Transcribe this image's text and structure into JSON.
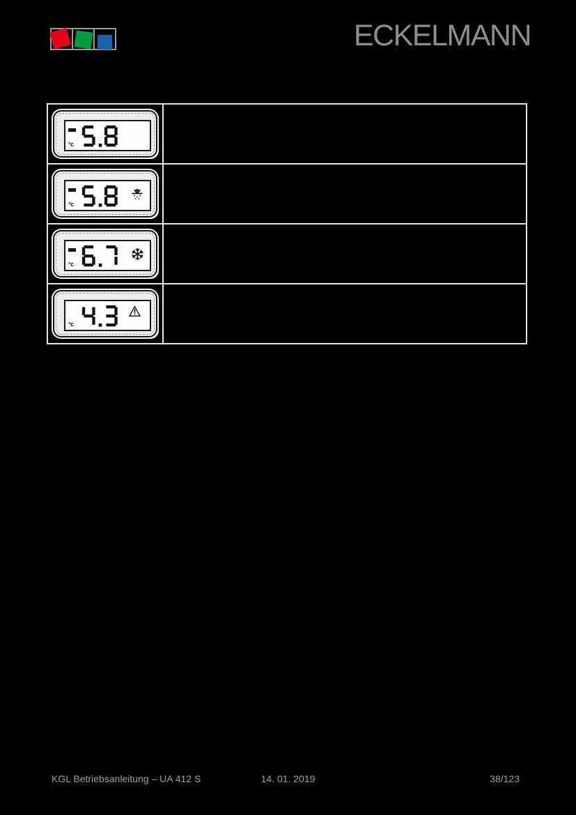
{
  "page": {
    "background": "#000000",
    "footer": {
      "left": "KGL Betriebsanleitung – UA 412 S",
      "center": "14. 01. 2019",
      "right": "38/123"
    }
  },
  "header": {
    "brand": "ECKELMANN",
    "brand_color": "#8d8d8d",
    "logo_squares": [
      {
        "name": "red-square",
        "color": "#e2001a"
      },
      {
        "name": "green-square",
        "color": "#009b3c"
      },
      {
        "name": "blue-square",
        "color": "#1e5fa9"
      }
    ]
  },
  "table": {
    "grid_color": "#e3e3e3",
    "rows": [
      {
        "display": {
          "value": "5.8",
          "minus": true,
          "unit": "°c",
          "icon": "none"
        }
      },
      {
        "display": {
          "value": "5.8",
          "minus": true,
          "unit": "°c",
          "icon": "snowflake-flashing"
        }
      },
      {
        "display": {
          "value": "6.7",
          "minus": true,
          "unit": "°c",
          "icon": "snowflake"
        }
      },
      {
        "display": {
          "value": "4.3",
          "minus": false,
          "unit": "°c",
          "icon": "alarm-triangle"
        }
      }
    ]
  }
}
